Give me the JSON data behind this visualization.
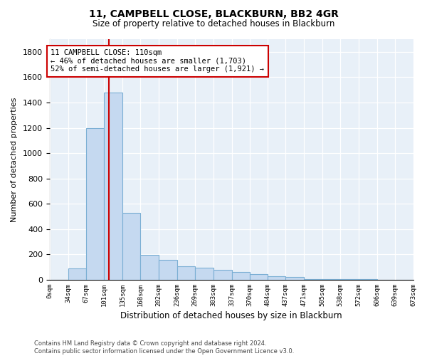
{
  "title1": "11, CAMPBELL CLOSE, BLACKBURN, BB2 4GR",
  "title2": "Size of property relative to detached houses in Blackburn",
  "xlabel": "Distribution of detached houses by size in Blackburn",
  "ylabel": "Number of detached properties",
  "bin_edges": [
    0,
    34,
    67,
    101,
    135,
    168,
    202,
    236,
    269,
    303,
    337,
    370,
    404,
    437,
    471,
    505,
    538,
    572,
    606,
    639,
    673
  ],
  "bar_heights": [
    0,
    90,
    1200,
    1480,
    530,
    195,
    155,
    105,
    95,
    80,
    60,
    45,
    25,
    20,
    8,
    5,
    4,
    3,
    2,
    2
  ],
  "bar_color": "#c5d9f0",
  "bar_edgecolor": "#7bafd4",
  "property_size": 110,
  "vline_color": "#cc0000",
  "annotation_text": "11 CAMPBELL CLOSE: 110sqm\n← 46% of detached houses are smaller (1,703)\n52% of semi-detached houses are larger (1,921) →",
  "annotation_box_edgecolor": "#cc0000",
  "annotation_box_facecolor": "#ffffff",
  "footer_text": "Contains HM Land Registry data © Crown copyright and database right 2024.\nContains public sector information licensed under the Open Government Licence v3.0.",
  "ylim": [
    0,
    1900
  ],
  "yticks": [
    0,
    200,
    400,
    600,
    800,
    1000,
    1200,
    1400,
    1600,
    1800
  ],
  "plot_background_color": "#e8f0f8",
  "figure_background_color": "#ffffff",
  "grid_color": "#ffffff"
}
